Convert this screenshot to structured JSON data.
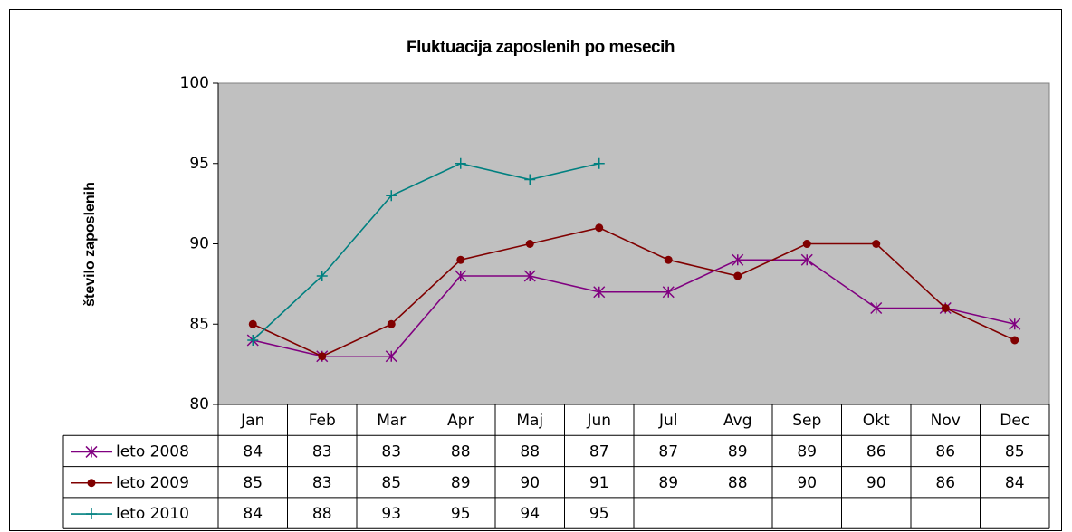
{
  "chart_data": {
    "type": "line",
    "title": "Fluktuacija zaposlenih po mesecih",
    "y_label": "število zaposlenih",
    "categories": [
      "Jan",
      "Feb",
      "Mar",
      "Apr",
      "Maj",
      "Jun",
      "Jul",
      "Avg",
      "Sep",
      "Okt",
      "Nov",
      "Dec"
    ],
    "series": [
      {
        "name": "leto 2008",
        "color": "#800080",
        "marker": "asterisk",
        "values": [
          84,
          83,
          83,
          88,
          88,
          87,
          87,
          89,
          89,
          86,
          86,
          85
        ]
      },
      {
        "name": "leto 2009",
        "color": "#800000",
        "marker": "circle",
        "values": [
          85,
          83,
          85,
          89,
          90,
          91,
          89,
          88,
          90,
          90,
          86,
          84
        ]
      },
      {
        "name": "leto 2010",
        "color": "#008080",
        "marker": "plus",
        "values": [
          84,
          88,
          93,
          95,
          94,
          95,
          null,
          null,
          null,
          null,
          null,
          null
        ]
      }
    ],
    "ylim": [
      80,
      100
    ],
    "yticks": [
      80,
      85,
      90,
      95,
      100
    ],
    "grid": false,
    "plot_background": "#c0c0c0"
  }
}
